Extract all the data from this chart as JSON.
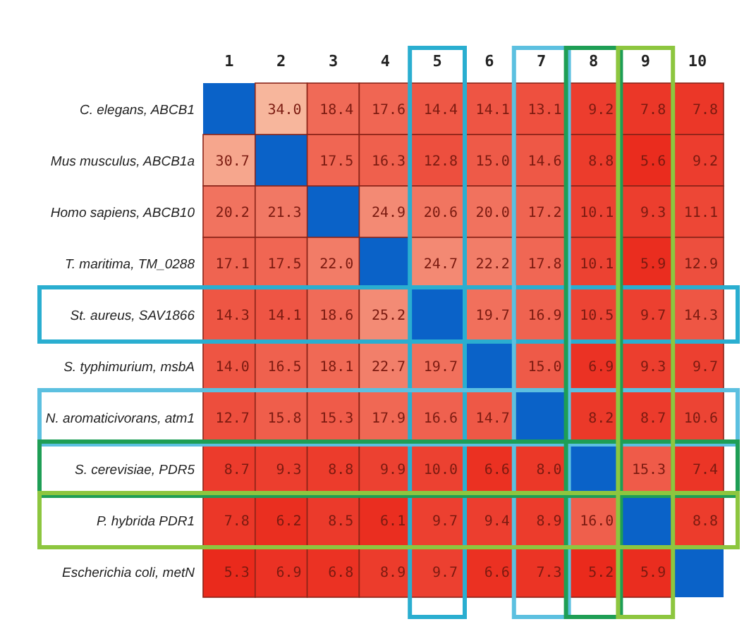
{
  "chart_data": {
    "type": "heatmap",
    "categories": [
      "1",
      "2",
      "3",
      "4",
      "5",
      "6",
      "7",
      "8",
      "9",
      "10"
    ],
    "y_categories": [
      "C. elegans, ABCB1",
      "Mus musculus, ABCB1a",
      "Homo sapiens, ABCB10",
      "T. maritima, TM_0288",
      "St. aureus, SAV1866",
      "S. typhimurium, msbA",
      "N. aromaticivorans, atm1",
      "S. cerevisiae, PDR5",
      "P. hybrida PDR1",
      "Escherichia coli, metN"
    ],
    "cells": [
      [
        null,
        34.0,
        18.4,
        17.6,
        14.4,
        14.1,
        13.1,
        9.2,
        7.8,
        7.8
      ],
      [
        30.7,
        null,
        17.5,
        16.3,
        12.8,
        15.0,
        14.6,
        8.8,
        5.6,
        9.2
      ],
      [
        20.2,
        21.3,
        null,
        24.9,
        20.6,
        20.0,
        17.2,
        10.1,
        9.3,
        11.1
      ],
      [
        17.1,
        17.5,
        22.0,
        null,
        24.7,
        22.2,
        17.8,
        10.1,
        5.9,
        12.9
      ],
      [
        14.3,
        14.1,
        18.6,
        25.2,
        null,
        19.7,
        16.9,
        10.5,
        9.7,
        14.3
      ],
      [
        14.0,
        16.5,
        18.1,
        22.7,
        19.7,
        null,
        15.0,
        6.9,
        9.3,
        9.7
      ],
      [
        12.7,
        15.8,
        15.3,
        17.9,
        16.6,
        14.7,
        null,
        8.2,
        8.7,
        10.6
      ],
      [
        8.7,
        9.3,
        8.8,
        9.9,
        10.0,
        6.6,
        8.0,
        null,
        15.3,
        7.4
      ],
      [
        7.8,
        6.2,
        8.5,
        6.1,
        9.7,
        9.4,
        8.9,
        16.0,
        null,
        8.8
      ],
      [
        5.3,
        6.9,
        6.8,
        8.9,
        9.7,
        6.6,
        7.3,
        5.2,
        5.9,
        null
      ]
    ],
    "data_labels": true,
    "cell_labels": [
      [
        null,
        "34.0",
        "18.4",
        "17.6",
        "14.4",
        "14.1",
        "13.1",
        "9.2",
        "7.8",
        "7.8"
      ],
      [
        "30.7",
        null,
        "17.5",
        "16.3",
        "12.8",
        "15.0",
        "14.6",
        "8.8",
        "5.6",
        "9.2"
      ],
      [
        "20.2",
        "21.3",
        null,
        "24.9",
        "20.6",
        "20.0",
        "17.2",
        "10.1",
        "9.3",
        "11.1"
      ],
      [
        "17.1",
        "17.5",
        "22.0",
        null,
        "24.7",
        "22.2",
        "17.8",
        "10.1",
        "5.9",
        "12.9"
      ],
      [
        "14.3",
        "14.1",
        "18.6",
        "25.2",
        null,
        "19.7",
        "16.9",
        "10.5",
        "9.7",
        "14.3"
      ],
      [
        "14.0",
        "16.5",
        "18.1",
        "22.7",
        "19.7",
        null,
        "15.0",
        "6.9",
        "9.3",
        "9.7"
      ],
      [
        "12.7",
        "15.8",
        "15.3",
        "17.9",
        "16.6",
        "14.7",
        null,
        "8.2",
        "8.7",
        "10.6"
      ],
      [
        "8.7",
        "9.3",
        "8.8",
        "9.9",
        "10.0",
        "6.6",
        "8.0",
        null,
        "15.3",
        "7.4"
      ],
      [
        "7.8",
        "6.2",
        "8.5",
        "6.1",
        "9.7",
        "9.4",
        "8.9",
        "16.0",
        null,
        "8.8"
      ],
      [
        "5.3",
        "6.9",
        "6.8",
        "8.9",
        "9.7",
        "6.6",
        "7.3",
        "5.2",
        "5.9",
        null
      ]
    ]
  }
}
